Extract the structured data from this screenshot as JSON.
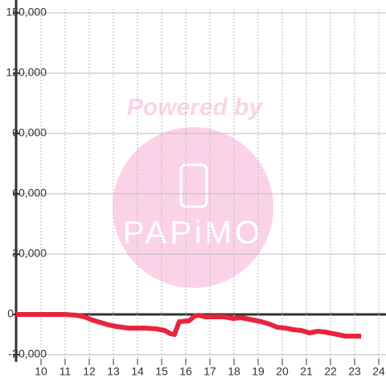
{
  "chart_data": {
    "type": "line",
    "watermark": {
      "line1": "Powered by",
      "line2": "PAPiMO"
    },
    "series": [
      {
        "color": "#e8243c",
        "x": [
          8.97,
          10.97,
          11.47,
          11.8,
          12.13,
          12.47,
          12.8,
          13.13,
          13.63,
          14.3,
          14.8,
          15.13,
          15.37,
          15.53,
          15.73,
          16.13,
          16.37,
          16.53,
          16.8,
          17.63,
          17.97,
          18.3,
          18.63,
          19.13,
          19.47,
          19.8,
          20.13,
          20.47,
          20.8,
          21.13,
          21.47,
          21.8,
          22.13,
          22.63,
          23.27
        ],
        "values": [
          0,
          0,
          -400,
          -1200,
          -2800,
          -4000,
          -5200,
          -6000,
          -6800,
          -6800,
          -7200,
          -8000,
          -9600,
          -10000,
          -3600,
          -3200,
          -800,
          -400,
          -1200,
          -1200,
          -2000,
          -1600,
          -2400,
          -3600,
          -4800,
          -6400,
          -6800,
          -7600,
          -8000,
          -9200,
          -8400,
          -8800,
          -9600,
          -10800,
          -10800
        ]
      }
    ],
    "xlim": [
      8.967,
      24.3
    ],
    "ylim": [
      -20000,
      152000
    ],
    "xticks": [
      10,
      11,
      12,
      13,
      14,
      15,
      16,
      17,
      18,
      19,
      20,
      21,
      22,
      23,
      24
    ],
    "yticks": [
      {
        "value": -20000,
        "label": "-20,000"
      },
      0,
      {
        "value": 30000,
        "label": "30,000"
      },
      {
        "value": 60000,
        "label": "60,000"
      },
      {
        "value": 90000,
        "label": "90,000"
      },
      {
        "value": 120000,
        "label": "120,000"
      },
      {
        "value": 150000,
        "label": "150,000"
      }
    ],
    "grid": true
  }
}
